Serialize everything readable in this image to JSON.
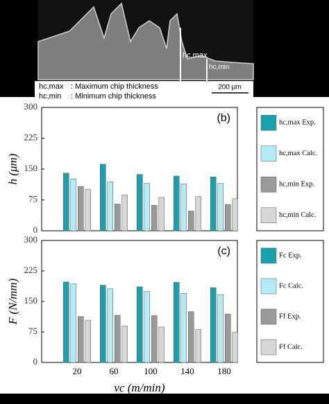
{
  "micrograph": {
    "hmax_label": "hc,max",
    "hmin_label": "hc,min",
    "scale": "200 μm",
    "legend": [
      {
        "symbol": "hc,max",
        "text": ": Maximum  chip thickness"
      },
      {
        "symbol": "hc,min",
        "text": ": Minimum  chip thickness"
      }
    ]
  },
  "chart_data": [
    {
      "type": "bar",
      "panel": "(b)",
      "y_label": "h (μm)",
      "ylim": [
        0,
        300
      ],
      "yticks": [
        0,
        75,
        150,
        225,
        300
      ],
      "series": [
        {
          "name": "hc,max Exp.",
          "color": "#1ba1ae",
          "values": [
            140,
            162,
            137,
            133,
            131
          ]
        },
        {
          "name": "hc,max Calc.",
          "color": "#b3ecf6",
          "values": [
            126,
            119,
            115,
            114,
            115
          ]
        },
        {
          "name": "hc,min Exp.",
          "color": "#9a9a9a",
          "values": [
            108,
            65,
            62,
            48,
            64
          ]
        },
        {
          "name": "hc,min Calc.",
          "color": "#d6d6d6",
          "values": [
            101,
            87,
            81,
            83,
            78
          ]
        }
      ]
    },
    {
      "type": "bar",
      "panel": "(c)",
      "y_label": "F (N/mm)",
      "x_label": "vc (m/min)",
      "ylim": [
        0,
        300
      ],
      "yticks": [
        0,
        75,
        150,
        225,
        300
      ],
      "categories": [
        "20",
        "60",
        "100",
        "140",
        "180"
      ],
      "series": [
        {
          "name": "Fc Exp.",
          "color": "#1ba1ae",
          "values": [
            198,
            190,
            186,
            197,
            184
          ]
        },
        {
          "name": "Fc Calc.",
          "color": "#b3ecf6",
          "values": [
            193,
            181,
            175,
            170,
            167
          ]
        },
        {
          "name": "Ff Exp.",
          "color": "#9a9a9a",
          "values": [
            113,
            116,
            115,
            125,
            119
          ]
        },
        {
          "name": "Ff Calc.",
          "color": "#d6d6d6",
          "values": [
            104,
            90,
            87,
            81,
            74
          ]
        }
      ]
    }
  ]
}
